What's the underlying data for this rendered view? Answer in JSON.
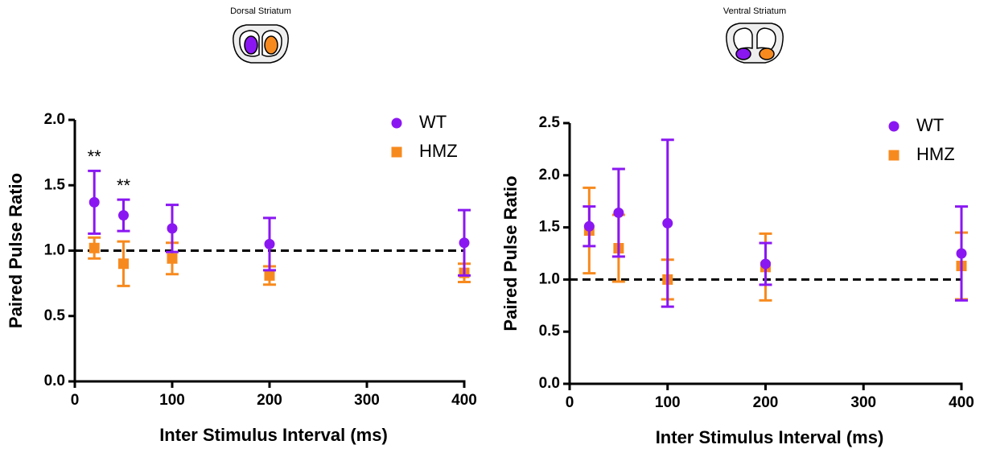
{
  "chart_data": [
    {
      "type": "scatter",
      "title": "Dorsal Striatum",
      "xlabel": "Inter Stimulus Interval (ms)",
      "ylabel": "Paired Pulse Ratio",
      "x": [
        20,
        50,
        100,
        200,
        400
      ],
      "series": [
        {
          "name": "WT",
          "color": "#8a17f2",
          "marker": "circle",
          "values": [
            1.37,
            1.27,
            1.17,
            1.05,
            1.06
          ],
          "errors": [
            0.24,
            0.12,
            0.18,
            0.2,
            0.25
          ]
        },
        {
          "name": "HMZ",
          "color": "#f78a1e",
          "marker": "square",
          "values": [
            1.02,
            0.9,
            0.94,
            0.81,
            0.83
          ],
          "errors": [
            0.08,
            0.17,
            0.12,
            0.07,
            0.07
          ]
        }
      ],
      "xlim": [
        0,
        400
      ],
      "xticks": [
        0,
        100,
        200,
        300,
        400
      ],
      "ylim": [
        0,
        2
      ],
      "yticks": [
        {
          "value": 0,
          "label": "0.0"
        },
        0.5,
        {
          "value": 1,
          "label": "1.0"
        },
        1.5,
        {
          "value": 2,
          "label": "2.0"
        }
      ],
      "hline": 1,
      "legend": "upper right",
      "annotations": [
        {
          "text": "**",
          "x": 20
        },
        {
          "text": "**",
          "x": 50
        }
      ]
    },
    {
      "type": "scatter",
      "title": "Ventral Striatum",
      "xlabel": "Inter Stimulus Interval (ms)",
      "ylabel": "Paired Pulse Ratio",
      "x": [
        20,
        50,
        100,
        200,
        400
      ],
      "series": [
        {
          "name": "WT",
          "color": "#8a17f2",
          "marker": "circle",
          "values": [
            1.51,
            1.64,
            1.54,
            1.15,
            1.25
          ],
          "errors": [
            0.19,
            0.42,
            0.8,
            0.2,
            0.45
          ]
        },
        {
          "name": "HMZ",
          "color": "#f78a1e",
          "marker": "square",
          "values": [
            1.47,
            1.3,
            1.0,
            1.12,
            1.13
          ],
          "errors": [
            0.41,
            0.32,
            0.19,
            0.32,
            0.32
          ]
        }
      ],
      "xlim": [
        0,
        400
      ],
      "xticks": [
        0,
        100,
        200,
        300,
        400
      ],
      "ylim": [
        0,
        2.5
      ],
      "yticks": [
        {
          "value": 0,
          "label": "0.0"
        },
        0.5,
        {
          "value": 1,
          "label": "1.0"
        },
        1.5,
        {
          "value": 2,
          "label": "2.0"
        },
        2.5
      ],
      "hline": 1,
      "legend": "upper right"
    }
  ]
}
